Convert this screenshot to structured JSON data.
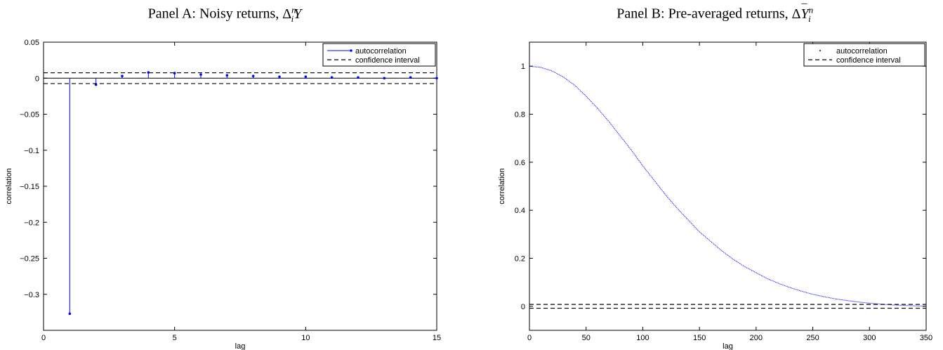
{
  "chart_data": [
    {
      "type": "line",
      "title_prefix": "Panel A: Noisy returns, ",
      "title_math": {
        "delta": "Δ",
        "sup": "n",
        "sub": "i",
        "var": "Y"
      },
      "xlabel": "lag",
      "ylabel": "correlation",
      "xlim": [
        0,
        15
      ],
      "ylim": [
        -0.35,
        0.05
      ],
      "xticks": [
        "0",
        "5",
        "10",
        "15"
      ],
      "xtick_values": [
        0,
        5,
        10,
        15
      ],
      "yticks": [
        "0.05",
        "0",
        "−0.05",
        "−0.1",
        "−0.15",
        "−0.2",
        "−0.25",
        "−0.3"
      ],
      "ytick_values": [
        0.05,
        0,
        -0.05,
        -0.1,
        -0.15,
        -0.2,
        -0.25,
        -0.3
      ],
      "legend_position": "top-right",
      "series": [
        {
          "name": "autocorrelation",
          "style": "stem",
          "color": "#0000ff",
          "x": [
            1,
            2,
            3,
            4,
            5,
            6,
            7,
            8,
            9,
            10,
            11,
            12,
            13,
            14,
            15
          ],
          "y": [
            -0.327,
            -0.009,
            0.003,
            0.008,
            0.007,
            0.005,
            0.004,
            0.003,
            0.002,
            0.002,
            0.001,
            0.001,
            0.0,
            0.001,
            0.0
          ]
        },
        {
          "name": "confidence interval",
          "style": "dashed",
          "color": "#000000",
          "values": [
            0.0075,
            -0.0075
          ]
        }
      ],
      "baseline": 0
    },
    {
      "type": "line",
      "title_prefix": "Panel B: Pre-averaged returns, ",
      "title_math": {
        "delta": "Δ",
        "sup": "n",
        "sub": "i",
        "var": "Y"
      },
      "xlabel": "lag",
      "ylabel": "correlation",
      "xlim": [
        0,
        350
      ],
      "ylim": [
        -0.1,
        1.1
      ],
      "xticks": [
        "0",
        "50",
        "100",
        "150",
        "200",
        "250",
        "300",
        "350"
      ],
      "xtick_values": [
        0,
        50,
        100,
        150,
        200,
        250,
        300,
        350
      ],
      "yticks": [
        "1",
        "0.8",
        "0.6",
        "0.4",
        "0.2",
        "0"
      ],
      "ytick_values": [
        1,
        0.8,
        0.6,
        0.4,
        0.2,
        0
      ],
      "legend_position": "top-right",
      "series": [
        {
          "name": "autocorrelation",
          "style": "dotted",
          "color": "#0000ff",
          "x": [
            0,
            10,
            20,
            30,
            40,
            50,
            60,
            70,
            80,
            90,
            100,
            110,
            120,
            130,
            140,
            150,
            160,
            170,
            180,
            190,
            200,
            210,
            220,
            230,
            240,
            250,
            260,
            270,
            280,
            290,
            300,
            310,
            320,
            330,
            340,
            350
          ],
          "y": [
            1.0,
            0.995,
            0.98,
            0.955,
            0.92,
            0.875,
            0.825,
            0.77,
            0.71,
            0.65,
            0.585,
            0.525,
            0.465,
            0.41,
            0.36,
            0.31,
            0.27,
            0.23,
            0.195,
            0.165,
            0.14,
            0.115,
            0.095,
            0.078,
            0.063,
            0.05,
            0.04,
            0.031,
            0.024,
            0.018,
            0.013,
            0.009,
            0.006,
            0.004,
            0.002,
            0.001
          ]
        },
        {
          "name": "confidence interval",
          "style": "dashed",
          "color": "#000000",
          "values": [
            0.008,
            -0.008
          ]
        }
      ],
      "baseline": null
    }
  ]
}
